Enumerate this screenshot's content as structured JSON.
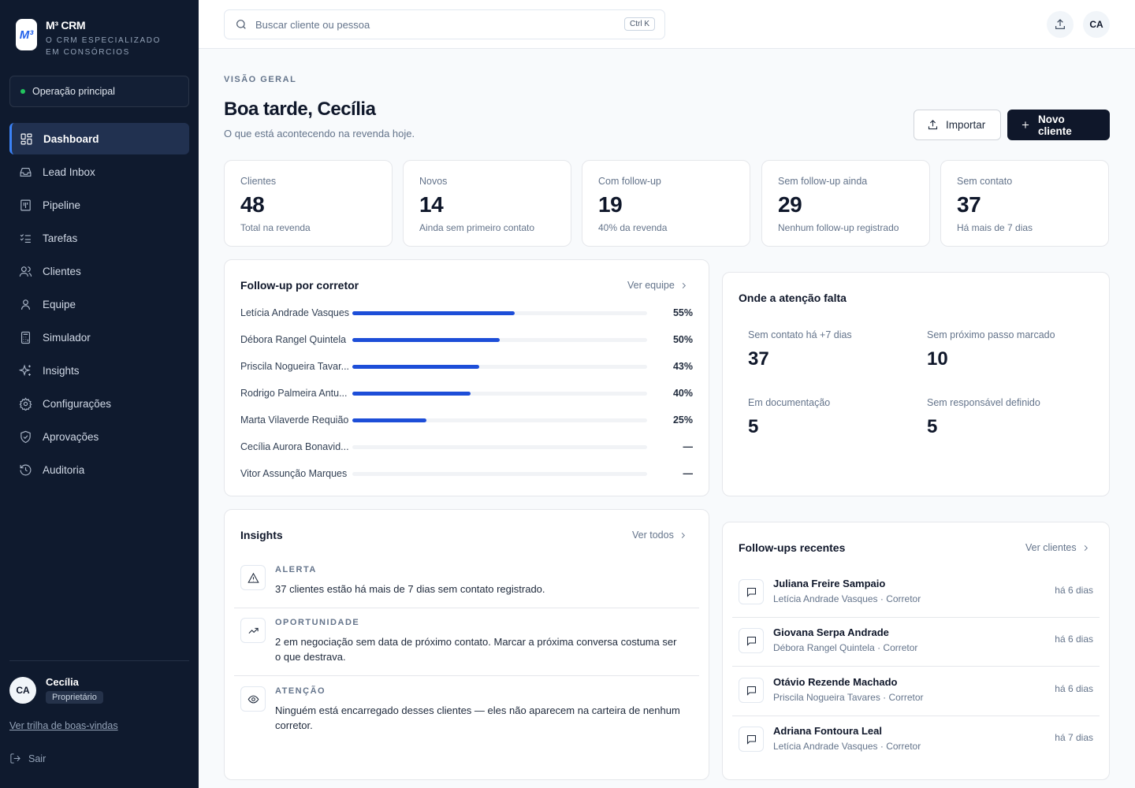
{
  "brand": {
    "name": "M³ CRM",
    "tagline": "O CRM ESPECIALIZADO EM CONSÓRCIOS",
    "logo_text": "M³"
  },
  "operation": {
    "label": "Operação principal"
  },
  "nav": [
    {
      "label": "Dashboard",
      "icon": "dashboard-icon",
      "active": true
    },
    {
      "label": "Lead Inbox",
      "icon": "inbox-icon"
    },
    {
      "label": "Pipeline",
      "icon": "kanban-icon"
    },
    {
      "label": "Tarefas",
      "icon": "checklist-icon"
    },
    {
      "label": "Clientes",
      "icon": "users-icon"
    },
    {
      "label": "Equipe",
      "icon": "user-icon"
    },
    {
      "label": "Simulador",
      "icon": "calculator-icon"
    },
    {
      "label": "Insights",
      "icon": "sparkles-icon"
    },
    {
      "label": "Configurações",
      "icon": "gear-icon"
    },
    {
      "label": "Aprovações",
      "icon": "shield-check-icon"
    },
    {
      "label": "Auditoria",
      "icon": "history-icon"
    }
  ],
  "user": {
    "initials": "CA",
    "name": "Cecília",
    "role": "Proprietário"
  },
  "sidebar_footer": {
    "trail_link": "Ver trilha de boas-vindas",
    "logout": "Sair"
  },
  "search": {
    "placeholder": "Buscar cliente ou pessoa",
    "shortcut": "Ctrl K"
  },
  "topbar": {
    "avatar": "CA"
  },
  "header": {
    "eyebrow": "VISÃO GERAL",
    "title": "Boa tarde, Cecília",
    "subtitle": "O que está acontecendo na revenda hoje.",
    "import_label": "Importar",
    "new_label": "Novo cliente"
  },
  "stats": [
    {
      "label": "Clientes",
      "value": "48",
      "desc": "Total na revenda"
    },
    {
      "label": "Novos",
      "value": "14",
      "desc": "Ainda sem primeiro contato"
    },
    {
      "label": "Com follow-up",
      "value": "19",
      "desc": "40% da revenda"
    },
    {
      "label": "Sem follow-up ainda",
      "value": "29",
      "desc": "Nenhum follow-up registrado"
    },
    {
      "label": "Sem contato",
      "value": "37",
      "desc": "Há mais de 7 dias"
    }
  ],
  "followup_by_broker": {
    "title": "Follow-up por corretor",
    "link": "Ver equipe",
    "rows": [
      {
        "name": "Letícia Andrade Vasques",
        "pct": 55,
        "pct_label": "55%"
      },
      {
        "name": "Débora Rangel Quintela",
        "pct": 50,
        "pct_label": "50%"
      },
      {
        "name": "Priscila Nogueira Tavar...",
        "pct": 43,
        "pct_label": "43%"
      },
      {
        "name": "Rodrigo Palmeira Antu...",
        "pct": 40,
        "pct_label": "40%"
      },
      {
        "name": "Marta Vilaverde Requião",
        "pct": 25,
        "pct_label": "25%"
      },
      {
        "name": "Cecília Aurora Bonavid...",
        "pct": 0,
        "pct_label": "—"
      },
      {
        "name": "Vitor Assunção Marques",
        "pct": 0,
        "pct_label": "—"
      }
    ]
  },
  "attention": {
    "title": "Onde a atenção falta",
    "items": [
      {
        "label": "Sem contato há +7 dias",
        "value": "37"
      },
      {
        "label": "Sem próximo passo marcado",
        "value": "10"
      },
      {
        "label": "Em documentação",
        "value": "5"
      },
      {
        "label": "Sem responsável definido",
        "value": "5"
      }
    ]
  },
  "insights": {
    "title": "Insights",
    "link": "Ver todos",
    "items": [
      {
        "tag": "ALERTA",
        "icon": "warning-triangle-icon",
        "text": "37 clientes estão há mais de 7 dias sem contato registrado."
      },
      {
        "tag": "OPORTUNIDADE",
        "icon": "trend-up-icon",
        "text": "2 em negociação sem data de próximo contato. Marcar a próxima conversa costuma ser o que destrava."
      },
      {
        "tag": "ATENÇÃO",
        "icon": "eye-icon",
        "text": "Ninguém está encarregado desses clientes — eles não aparecem na carteira de nenhum corretor."
      }
    ]
  },
  "recent_followups": {
    "title": "Follow-ups recentes",
    "link": "Ver clientes",
    "items": [
      {
        "name": "Juliana Freire Sampaio",
        "sub": "Letícia Andrade Vasques · Corretor",
        "time": "há 6 dias"
      },
      {
        "name": "Giovana Serpa Andrade",
        "sub": "Débora Rangel Quintela · Corretor",
        "time": "há 6 dias"
      },
      {
        "name": "Otávio Rezende Machado",
        "sub": "Priscila Nogueira Tavares · Corretor",
        "time": "há 6 dias"
      },
      {
        "name": "Adriana Fontoura Leal",
        "sub": "Letícia Andrade Vasques · Corretor",
        "time": "há 7 dias"
      }
    ]
  },
  "colors": {
    "accent": "#1d4ed8",
    "sidebar": "#0f1a2e",
    "primary_button": "#0f172a"
  }
}
